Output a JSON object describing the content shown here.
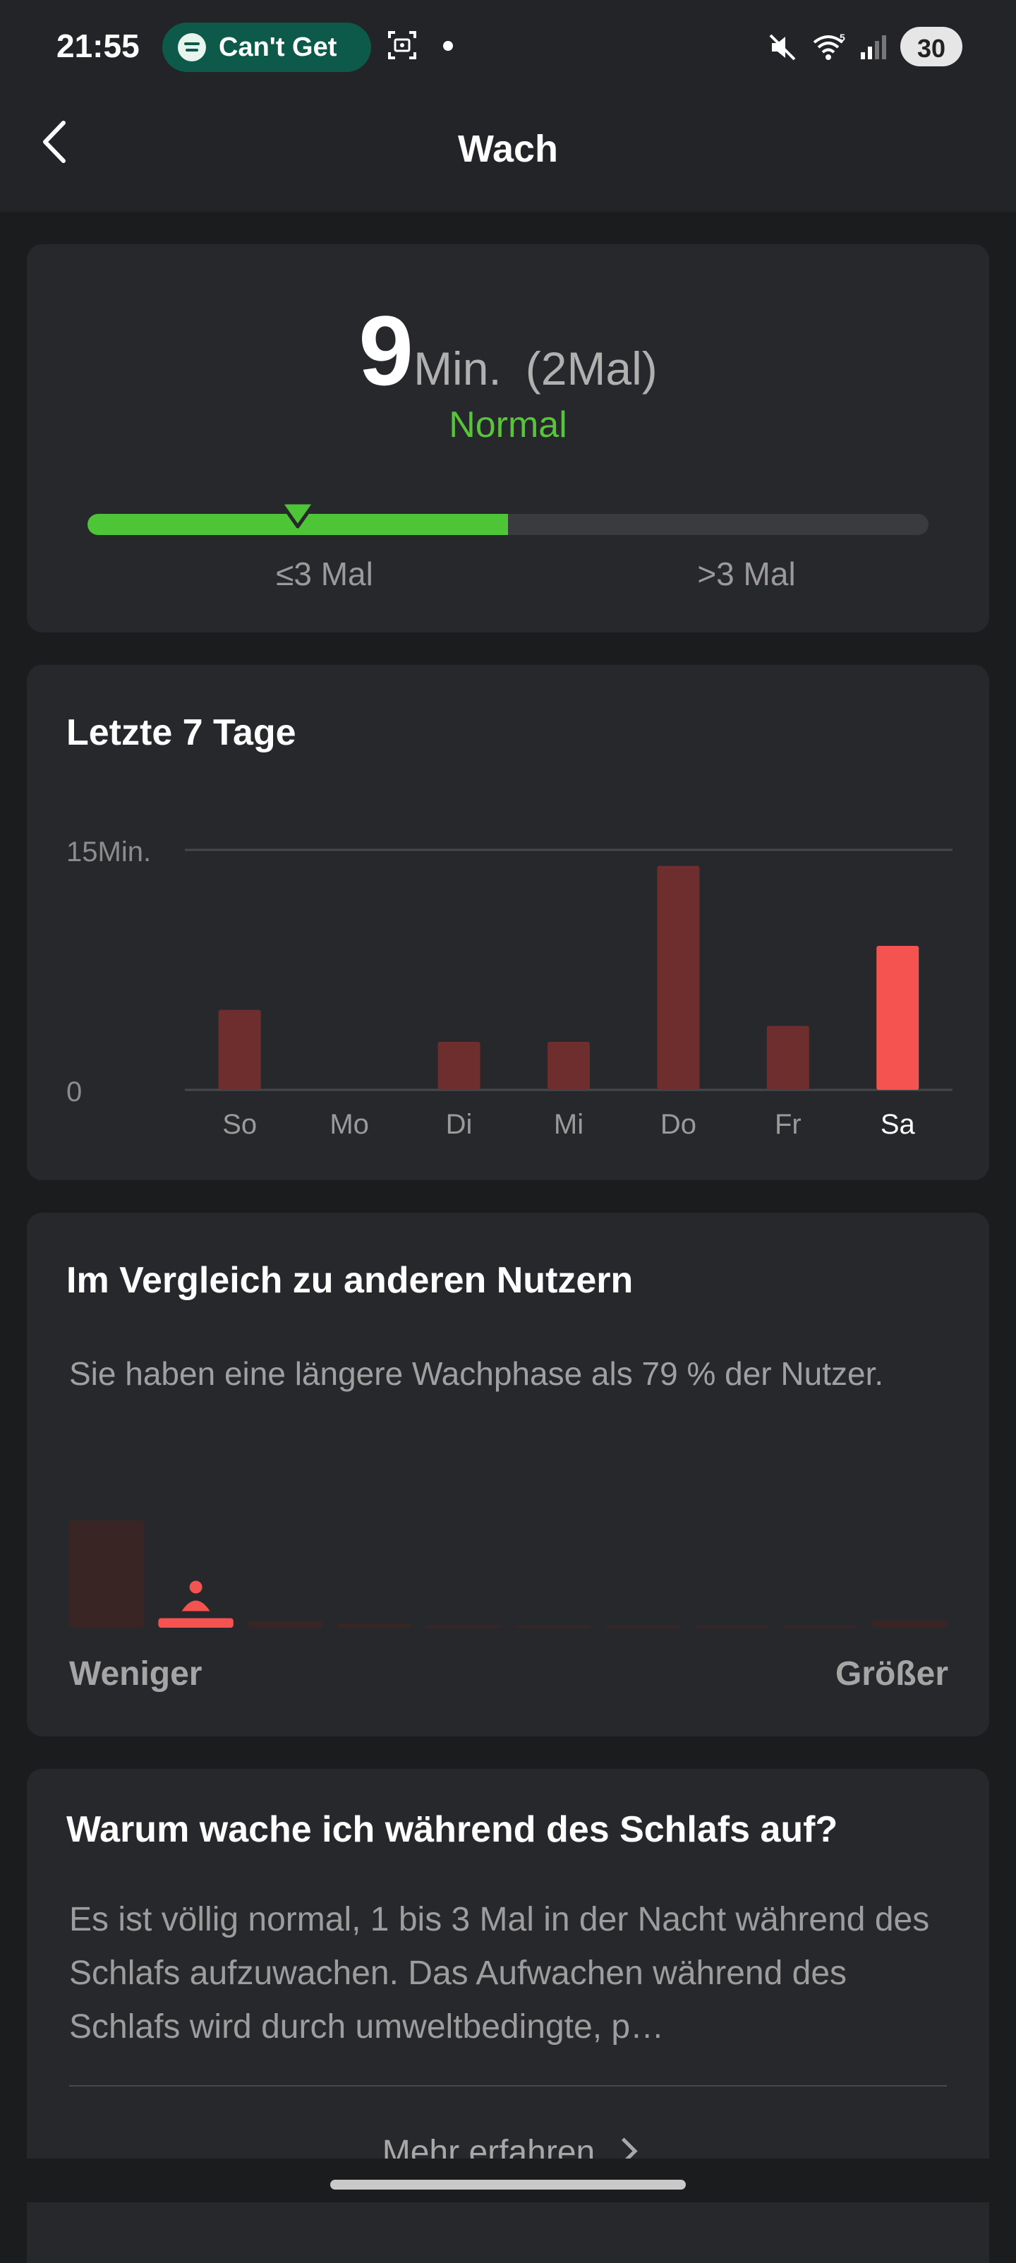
{
  "status_bar": {
    "time": "21:55",
    "media_pill": {
      "icon": "spotify-icon",
      "text": "Can't Get"
    },
    "battery": "30",
    "icons": [
      "screenshot-icon",
      "dot-icon",
      "mute-icon",
      "wifi-icon",
      "signal-icon",
      "battery-icon"
    ]
  },
  "header": {
    "title": "Wach",
    "back_icon": "back-arrow-icon"
  },
  "summary": {
    "value": "9",
    "unit": "Min.",
    "count": "(2Mal)",
    "status": "Normal",
    "range_low_label": "≤3 Mal",
    "range_high_label": ">3 Mal",
    "normal_zone_fraction": 0.5,
    "marker_fraction": 0.25
  },
  "week": {
    "title": "Letzte 7 Tage"
  },
  "chart_data": {
    "type": "bar",
    "title": "Letzte 7 Tage",
    "categories": [
      "So",
      "Mo",
      "Di",
      "Mi",
      "Do",
      "Fr",
      "Sa"
    ],
    "values": [
      5,
      0,
      3,
      3,
      14,
      4,
      9
    ],
    "highlighted_category": "Sa",
    "unit": "Min.",
    "ylim": [
      0,
      15
    ],
    "ytick_labels": [
      "0",
      "15Min."
    ],
    "grid": "top line only",
    "colors": {
      "bar": "#6e2e2e",
      "highlight": "#f5534f",
      "grid": "#46474a"
    }
  },
  "compare": {
    "title": "Im Vergleich zu anderen Nutzern",
    "description": "Sie haben eine längere Wachphase als 79 % der Nutzer.",
    "label_left": "Weniger",
    "label_right": "Größer",
    "user_icon": "person-icon",
    "distribution": [
      0.9,
      0.08,
      0.05,
      0.03,
      0.02,
      0.01,
      0.01,
      0.01,
      0.01,
      0.06
    ],
    "user_bin": 1,
    "colors": {
      "bin": "#3a2525",
      "user_bin": "#f5534f"
    }
  },
  "why": {
    "title": "Warum wache ich während des Schlafs auf?",
    "text": "Es ist völlig normal, 1 bis 3 Mal in der Nacht während des Schlafs aufzuwachen. Das Aufwachen während des Schlafs wird durch umweltbedingte, p…",
    "more_label": "Mehr erfahren"
  },
  "theme": {
    "accent_green": "#4ec537",
    "accent_red": "#f5534f",
    "background": "#1b1c1e",
    "card": "#27282b"
  }
}
